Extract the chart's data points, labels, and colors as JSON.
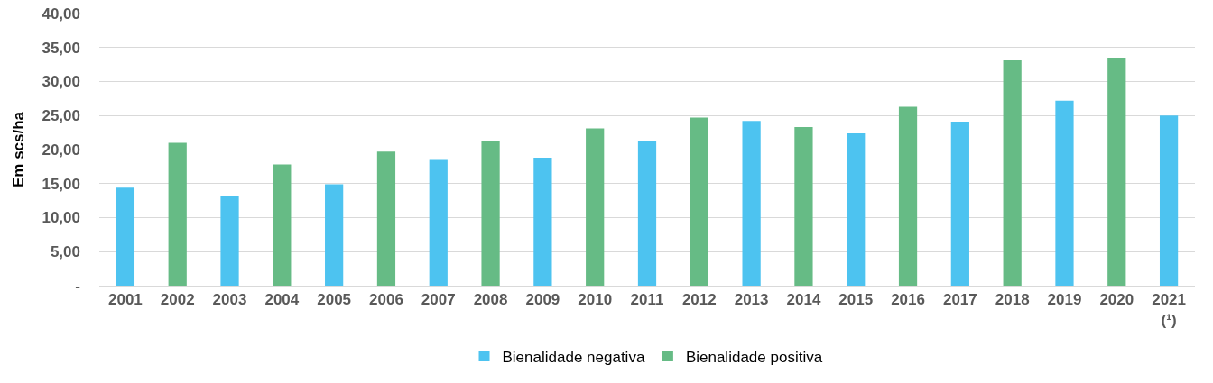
{
  "chart_data": {
    "type": "bar",
    "ylabel": "Em scs/ha",
    "categories": [
      "2001",
      "2002",
      "2003",
      "2004",
      "2005",
      "2006",
      "2007",
      "2008",
      "2009",
      "2010",
      "2011",
      "2012",
      "2013",
      "2014",
      "2015",
      "2016",
      "2017",
      "2018",
      "2019",
      "2020",
      "2021\n(¹)"
    ],
    "series": [
      {
        "name": "Bienalidade negativa",
        "color": "#4dc3f0",
        "values": [
          14.4,
          null,
          13.1,
          null,
          14.9,
          null,
          18.6,
          null,
          18.8,
          null,
          21.2,
          null,
          24.2,
          null,
          22.4,
          null,
          24.1,
          null,
          27.2,
          null,
          25.0
        ]
      },
      {
        "name": "Bienalidade positiva",
        "color": "#66bb85",
        "values": [
          null,
          21.0,
          null,
          17.8,
          null,
          19.7,
          null,
          21.2,
          null,
          23.1,
          null,
          24.7,
          null,
          23.3,
          null,
          26.3,
          null,
          33.1,
          null,
          33.5,
          null
        ]
      }
    ],
    "ylim": [
      0,
      40
    ],
    "yticks": [
      {
        "value": 0,
        "label": "-"
      },
      {
        "value": 5,
        "label": "5,00"
      },
      {
        "value": 10,
        "label": "10,00"
      },
      {
        "value": 15,
        "label": "15,00"
      },
      {
        "value": 20,
        "label": "20,00"
      },
      {
        "value": 25,
        "label": "25,00"
      },
      {
        "value": 30,
        "label": "30,00"
      },
      {
        "value": 35,
        "label": "35,00"
      },
      {
        "value": 40,
        "label": "40,00"
      }
    ],
    "grid": "y",
    "legend": "bottom"
  }
}
